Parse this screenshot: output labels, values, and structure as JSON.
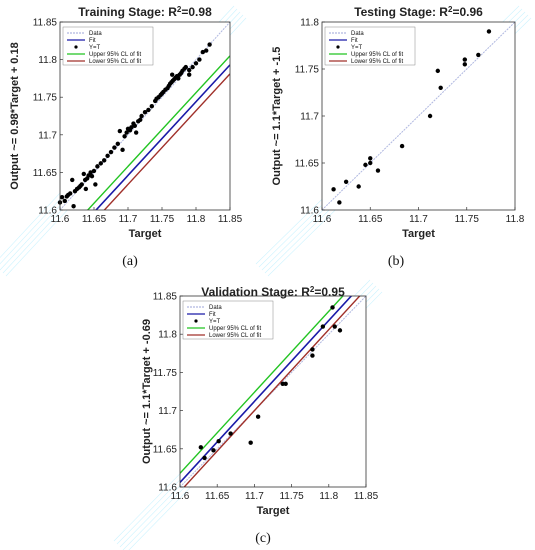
{
  "chart_data": [
    {
      "id": "a",
      "type": "scatter",
      "title": "Training Stage: R",
      "title_sup": "2",
      "title_tail": "=0.98",
      "xlabel": "Target",
      "ylabel": "Output ~= 0.98*Target + 0.18",
      "xlim": [
        11.6,
        11.85
      ],
      "ylim": [
        11.6,
        11.85
      ],
      "xticks": [
        "11.6",
        "11.65",
        "11.7",
        "11.75",
        "11.8",
        "11.85"
      ],
      "yticks": [
        "11.6",
        "11.65",
        "11.7",
        "11.75",
        "11.8",
        "11.85"
      ],
      "fit": {
        "slope": 0.98,
        "intercept": 0.18
      },
      "ci_offset": 0.012,
      "legend_entries": [
        "Data",
        "Fit",
        "Y=T",
        "Upper 95% CL of fit",
        "Lower 95% CL of fit"
      ],
      "legend_position": "top-left",
      "caption": "(a)",
      "points": [
        [
          11.6,
          11.61
        ],
        [
          11.603,
          11.617
        ],
        [
          11.607,
          11.612
        ],
        [
          11.61,
          11.618
        ],
        [
          11.612,
          11.62
        ],
        [
          11.615,
          11.622
        ],
        [
          11.618,
          11.64
        ],
        [
          11.62,
          11.605
        ],
        [
          11.622,
          11.625
        ],
        [
          11.625,
          11.628
        ],
        [
          11.628,
          11.63
        ],
        [
          11.63,
          11.632
        ],
        [
          11.632,
          11.634
        ],
        [
          11.635,
          11.648
        ],
        [
          11.637,
          11.64
        ],
        [
          11.638,
          11.628
        ],
        [
          11.64,
          11.642
        ],
        [
          11.642,
          11.646
        ],
        [
          11.645,
          11.65
        ],
        [
          11.647,
          11.645
        ],
        [
          11.65,
          11.652
        ],
        [
          11.652,
          11.634
        ],
        [
          11.655,
          11.658
        ],
        [
          11.66,
          11.662
        ],
        [
          11.665,
          11.666
        ],
        [
          11.67,
          11.672
        ],
        [
          11.675,
          11.677
        ],
        [
          11.68,
          11.683
        ],
        [
          11.685,
          11.688
        ],
        [
          11.688,
          11.705
        ],
        [
          11.692,
          11.68
        ],
        [
          11.695,
          11.698
        ],
        [
          11.698,
          11.703
        ],
        [
          11.7,
          11.708
        ],
        [
          11.703,
          11.706
        ],
        [
          11.705,
          11.71
        ],
        [
          11.708,
          11.715
        ],
        [
          11.71,
          11.712
        ],
        [
          11.712,
          11.703
        ],
        [
          11.715,
          11.718
        ],
        [
          11.718,
          11.72
        ],
        [
          11.72,
          11.725
        ],
        [
          11.725,
          11.73
        ],
        [
          11.73,
          11.733
        ],
        [
          11.735,
          11.738
        ],
        [
          11.74,
          11.745
        ],
        [
          11.742,
          11.748
        ],
        [
          11.745,
          11.75
        ],
        [
          11.748,
          11.753
        ],
        [
          11.75,
          11.755
        ],
        [
          11.752,
          11.757
        ],
        [
          11.755,
          11.76
        ],
        [
          11.758,
          11.762
        ],
        [
          11.76,
          11.765
        ],
        [
          11.762,
          11.768
        ],
        [
          11.764,
          11.77
        ],
        [
          11.766,
          11.772
        ],
        [
          11.768,
          11.774
        ],
        [
          11.77,
          11.776
        ],
        [
          11.772,
          11.778
        ],
        [
          11.774,
          11.775
        ],
        [
          11.776,
          11.78
        ],
        [
          11.778,
          11.782
        ],
        [
          11.78,
          11.785
        ],
        [
          11.783,
          11.788
        ],
        [
          11.785,
          11.79
        ],
        [
          11.79,
          11.786
        ],
        [
          11.795,
          11.79
        ],
        [
          11.8,
          11.795
        ],
        [
          11.805,
          11.8
        ],
        [
          11.81,
          11.81
        ],
        [
          11.815,
          11.812
        ],
        [
          11.82,
          11.82
        ],
        [
          11.79,
          11.78
        ],
        [
          11.765,
          11.78
        ]
      ]
    },
    {
      "id": "b",
      "type": "scatter",
      "title": "Testing Stage: R",
      "title_sup": "2",
      "title_tail": "=0.96",
      "xlabel": "Target",
      "ylabel": "Output ~= 1.1*Target + -1.5",
      "xlim": [
        11.6,
        11.8
      ],
      "ylim": [
        11.6,
        11.8
      ],
      "xticks": [
        "11.6",
        "11.65",
        "11.7",
        "11.75",
        "11.8"
      ],
      "yticks": [
        "11.6",
        "11.65",
        "11.7",
        "11.75",
        "11.8"
      ],
      "fit": {
        "slope": 1.1,
        "intercept": -1.5
      },
      "ci_offset": 0.012,
      "legend_entries": [
        "Data",
        "Fit",
        "Y=T",
        "Upper 95% CL of fit",
        "Lower 95% CL of fit"
      ],
      "legend_position": "top-left",
      "caption": "(b)",
      "points": [
        [
          11.612,
          11.622
        ],
        [
          11.618,
          11.608
        ],
        [
          11.625,
          11.63
        ],
        [
          11.638,
          11.625
        ],
        [
          11.645,
          11.648
        ],
        [
          11.65,
          11.65
        ],
        [
          11.65,
          11.655
        ],
        [
          11.658,
          11.642
        ],
        [
          11.683,
          11.668
        ],
        [
          11.712,
          11.7
        ],
        [
          11.72,
          11.748
        ],
        [
          11.723,
          11.73
        ],
        [
          11.748,
          11.755
        ],
        [
          11.748,
          11.76
        ],
        [
          11.762,
          11.765
        ],
        [
          11.773,
          11.79
        ]
      ]
    },
    {
      "id": "c",
      "type": "scatter",
      "title": "Validation Stage: R",
      "title_sup": "2",
      "title_tail": "=0.95",
      "xlabel": "Target",
      "ylabel": "Output ~= 1.1*Target + -0.69",
      "xlim": [
        11.6,
        11.85
      ],
      "ylim": [
        11.6,
        11.85
      ],
      "xticks": [
        "11.6",
        "11.65",
        "11.7",
        "11.75",
        "11.8",
        "11.85"
      ],
      "yticks": [
        "11.6",
        "11.65",
        "11.7",
        "11.75",
        "11.8",
        "11.85"
      ],
      "fit": {
        "slope": 1.06,
        "intercept": -0.69
      },
      "ci_offset": 0.012,
      "legend_entries": [
        "Data",
        "Fit",
        "Y=T",
        "Upper 95% CL of fit",
        "Lower 95% CL of fit"
      ],
      "legend_position": "top-left",
      "caption": "(c)",
      "points": [
        [
          11.628,
          11.652
        ],
        [
          11.633,
          11.638
        ],
        [
          11.645,
          11.648
        ],
        [
          11.652,
          11.66
        ],
        [
          11.668,
          11.67
        ],
        [
          11.695,
          11.658
        ],
        [
          11.705,
          11.692
        ],
        [
          11.738,
          11.735
        ],
        [
          11.742,
          11.735
        ],
        [
          11.778,
          11.772
        ],
        [
          11.778,
          11.78
        ],
        [
          11.792,
          11.81
        ],
        [
          11.805,
          11.835
        ],
        [
          11.808,
          11.81
        ],
        [
          11.815,
          11.805
        ]
      ]
    }
  ],
  "colors": {
    "data": "#000000",
    "fit": "#1a1aa8",
    "yt": "#b0b8e0",
    "upper": "#22c422",
    "lower": "#a0302a",
    "watermark": "#b8eefe",
    "axis": "#333333"
  }
}
